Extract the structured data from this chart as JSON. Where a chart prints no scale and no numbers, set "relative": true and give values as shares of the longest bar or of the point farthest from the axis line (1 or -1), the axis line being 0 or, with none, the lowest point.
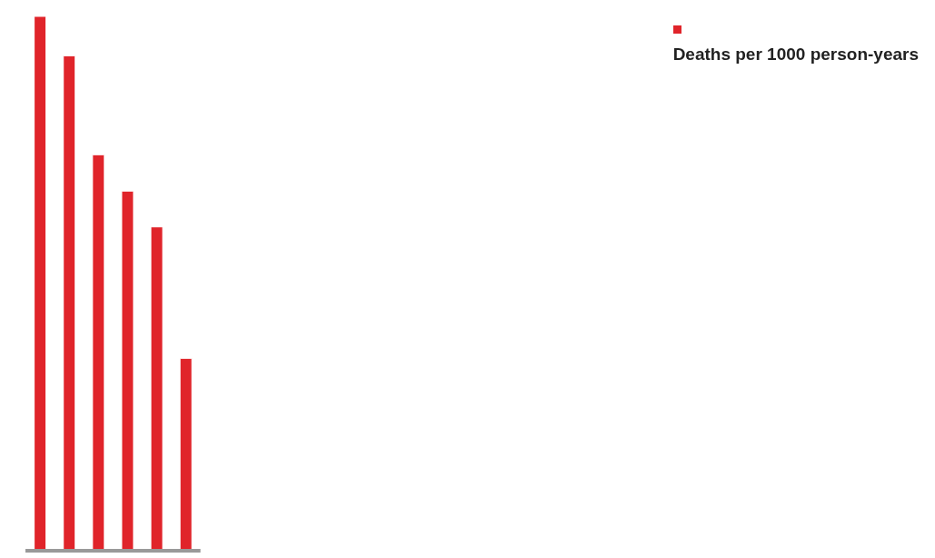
{
  "chart_data": {
    "type": "bar",
    "relative": true,
    "categories": [
      null,
      null,
      null,
      null,
      null,
      null
    ],
    "legend": "top right",
    "series": [
      {
        "name": "Deaths per 1000 person-years",
        "color": "#e0242a",
        "values": [
          1,
          0.926,
          0.741,
          0.673,
          0.606,
          0.36
        ]
      }
    ]
  }
}
